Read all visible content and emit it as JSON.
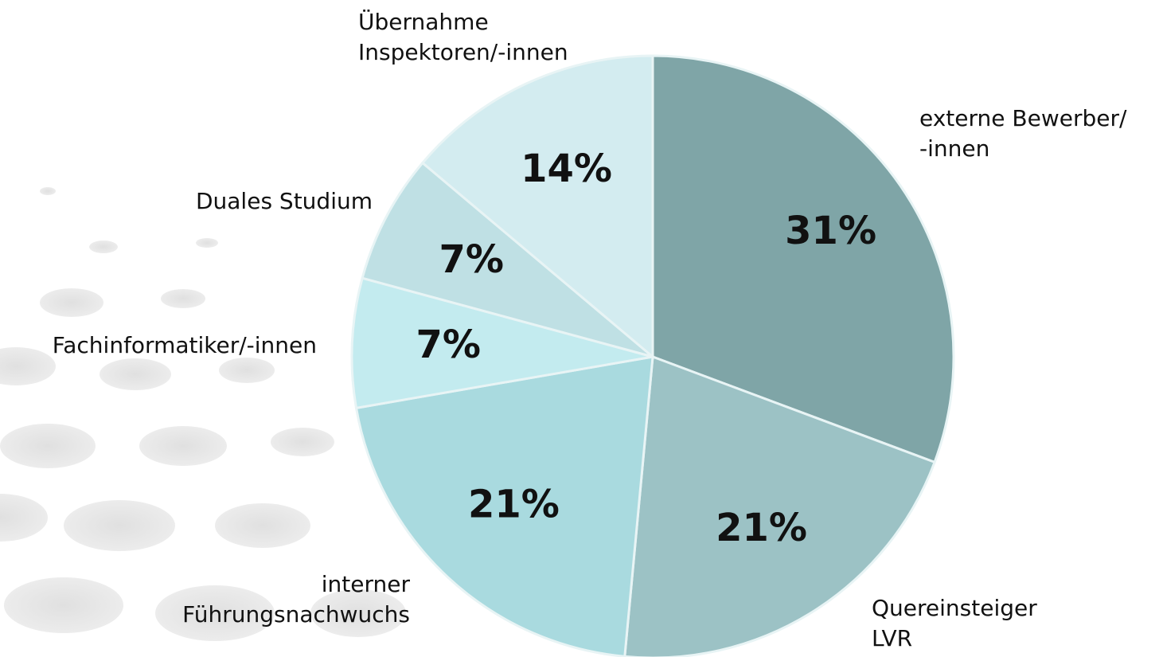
{
  "chart_data": {
    "type": "pie",
    "categories": [
      [
        "externe Bewerber/",
        "-innen"
      ],
      [
        "Quereinsteiger",
        "LVR"
      ],
      [
        "interner",
        "Führungsnachwuchs"
      ],
      [
        "Fachinformatiker/-innen"
      ],
      [
        "Duales Studium"
      ],
      [
        "Übernahme",
        "Inspektoren/-innen"
      ]
    ],
    "values": [
      31,
      21,
      21,
      7,
      7,
      14
    ],
    "value_labels": [
      "31%",
      "21%",
      "21%",
      "7%",
      "7%",
      "14%"
    ],
    "colors": [
      "#7fa5a7",
      "#9cc2c5",
      "#a9dadf",
      "#c3ebef",
      "#bfe0e4",
      "#d3ecf0"
    ]
  }
}
